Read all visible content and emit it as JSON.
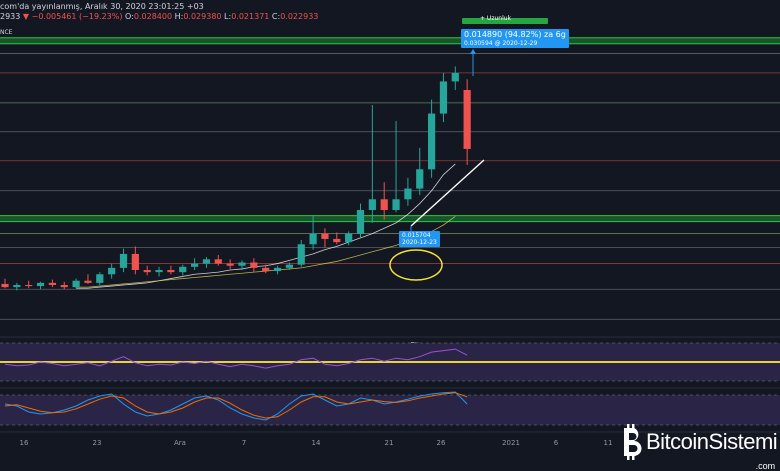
{
  "header": {
    "line1": "com'da yayınlanmış, Aralık 30, 2020 23:01:25 +03",
    "line2_prefix": "2933",
    "change": "−0.005461 (−19.23%)",
    "o_label": "O:",
    "o_val": "0.028400",
    "h_label": "H:",
    "h_val": "0.029380",
    "l_label": "L:",
    "l_val": "0.021371",
    "c_label": "C:",
    "c_val": "0.022933",
    "exchange": "NCE"
  },
  "callouts": {
    "top_green_label": "+ Uzunluk",
    "measure_main": "0.014890 (94.82%) zа 6g",
    "measure_sub": "0.030594 @ 2020-12-29",
    "low_main": "0.015704",
    "low_sub": "2020-12-23"
  },
  "x_axis": [
    "16",
    "23",
    "Ara",
    "7",
    "14",
    "21",
    "26",
    "2021",
    "6",
    "11"
  ],
  "logo": {
    "text": "BitcoinSistemi",
    "suffix": ".com"
  },
  "colors": {
    "up": "#26a69a",
    "down": "#ef5350",
    "bg": "#131722"
  },
  "chart_data": {
    "type": "candlestick",
    "candles": [
      {
        "o": 0.0103,
        "h": 0.0108,
        "l": 0.0099,
        "c": 0.01
      },
      {
        "o": 0.01,
        "h": 0.0104,
        "l": 0.0097,
        "c": 0.0102
      },
      {
        "o": 0.0102,
        "h": 0.0106,
        "l": 0.0099,
        "c": 0.0101
      },
      {
        "o": 0.0101,
        "h": 0.0105,
        "l": 0.0098,
        "c": 0.0104
      },
      {
        "o": 0.0104,
        "h": 0.0107,
        "l": 0.01,
        "c": 0.0102
      },
      {
        "o": 0.0102,
        "h": 0.0105,
        "l": 0.0098,
        "c": 0.01
      },
      {
        "o": 0.01,
        "h": 0.0108,
        "l": 0.0099,
        "c": 0.0106
      },
      {
        "o": 0.0106,
        "h": 0.0112,
        "l": 0.0103,
        "c": 0.0104
      },
      {
        "o": 0.0104,
        "h": 0.0114,
        "l": 0.0102,
        "c": 0.0112
      },
      {
        "o": 0.0112,
        "h": 0.0122,
        "l": 0.0108,
        "c": 0.0118
      },
      {
        "o": 0.0118,
        "h": 0.0136,
        "l": 0.0114,
        "c": 0.0131
      },
      {
        "o": 0.0131,
        "h": 0.0138,
        "l": 0.0112,
        "c": 0.0116
      },
      {
        "o": 0.0116,
        "h": 0.012,
        "l": 0.0111,
        "c": 0.0114
      },
      {
        "o": 0.0114,
        "h": 0.0119,
        "l": 0.011,
        "c": 0.0116
      },
      {
        "o": 0.0116,
        "h": 0.012,
        "l": 0.0112,
        "c": 0.0114
      },
      {
        "o": 0.0114,
        "h": 0.0121,
        "l": 0.0111,
        "c": 0.0119
      },
      {
        "o": 0.0119,
        "h": 0.0127,
        "l": 0.0116,
        "c": 0.0122
      },
      {
        "o": 0.0122,
        "h": 0.0128,
        "l": 0.0118,
        "c": 0.0126
      },
      {
        "o": 0.0126,
        "h": 0.013,
        "l": 0.012,
        "c": 0.0122
      },
      {
        "o": 0.0122,
        "h": 0.0126,
        "l": 0.0117,
        "c": 0.012
      },
      {
        "o": 0.012,
        "h": 0.0125,
        "l": 0.0116,
        "c": 0.0123
      },
      {
        "o": 0.0123,
        "h": 0.0127,
        "l": 0.0114,
        "c": 0.0118
      },
      {
        "o": 0.0118,
        "h": 0.0121,
        "l": 0.0113,
        "c": 0.0115
      },
      {
        "o": 0.0115,
        "h": 0.012,
        "l": 0.0112,
        "c": 0.0118
      },
      {
        "o": 0.0118,
        "h": 0.0123,
        "l": 0.0116,
        "c": 0.0121
      },
      {
        "o": 0.0121,
        "h": 0.0144,
        "l": 0.0119,
        "c": 0.014
      },
      {
        "o": 0.014,
        "h": 0.0167,
        "l": 0.0135,
        "c": 0.015
      },
      {
        "o": 0.015,
        "h": 0.0155,
        "l": 0.0137,
        "c": 0.0145
      },
      {
        "o": 0.0145,
        "h": 0.0151,
        "l": 0.014,
        "c": 0.0142
      },
      {
        "o": 0.0142,
        "h": 0.0152,
        "l": 0.0139,
        "c": 0.015
      },
      {
        "o": 0.015,
        "h": 0.0178,
        "l": 0.0146,
        "c": 0.0172
      },
      {
        "o": 0.0172,
        "h": 0.027,
        "l": 0.016,
        "c": 0.0182
      },
      {
        "o": 0.0182,
        "h": 0.0198,
        "l": 0.0163,
        "c": 0.0172
      },
      {
        "o": 0.0172,
        "h": 0.0255,
        "l": 0.017,
        "c": 0.0182
      },
      {
        "o": 0.0182,
        "h": 0.0202,
        "l": 0.0176,
        "c": 0.0192
      },
      {
        "o": 0.0192,
        "h": 0.023,
        "l": 0.0186,
        "c": 0.021
      },
      {
        "o": 0.021,
        "h": 0.0275,
        "l": 0.0202,
        "c": 0.0262
      },
      {
        "o": 0.0262,
        "h": 0.03,
        "l": 0.0254,
        "c": 0.0292
      },
      {
        "o": 0.0292,
        "h": 0.0306,
        "l": 0.0284,
        "c": 0.03
      },
      {
        "o": 0.0284,
        "h": 0.0294,
        "l": 0.0214,
        "c": 0.0229
      }
    ],
    "moving_averages": [
      {
        "values": [
          0.0099,
          0.0099,
          0.01,
          0.0101,
          0.0102,
          0.0103,
          0.0104,
          0.0106,
          0.0108,
          0.011,
          0.0112,
          0.0113,
          0.0114,
          0.0116,
          0.0117,
          0.0119,
          0.012,
          0.0122,
          0.0125,
          0.0128,
          0.0131,
          0.0135,
          0.0138,
          0.0142,
          0.0146,
          0.015,
          0.0155,
          0.016,
          0.0168,
          0.0178,
          0.019,
          0.0205,
          0.0215
        ],
        "color": "#ffffff",
        "start": 6
      },
      {
        "values": [
          0.01,
          0.01,
          0.0101,
          0.0102,
          0.0103,
          0.0104,
          0.0105,
          0.0106,
          0.0107,
          0.0108,
          0.0109,
          0.011,
          0.0111,
          0.0112,
          0.0113,
          0.0114,
          0.0115,
          0.0116,
          0.0117,
          0.0118,
          0.012,
          0.0122,
          0.0124,
          0.0127,
          0.013,
          0.0133,
          0.0136,
          0.0139,
          0.0143,
          0.0147,
          0.0152,
          0.0158,
          0.0166
        ],
        "color": "#e0d25a",
        "start": 6
      }
    ],
    "levels": [
      {
        "v": 0.033,
        "color": "#26c940",
        "style": "band"
      },
      {
        "v": 0.0318,
        "color": "#787b86"
      },
      {
        "v": 0.03,
        "color": "#c2493f"
      },
      {
        "v": 0.0272,
        "color": "#7fa36b"
      },
      {
        "v": 0.0245,
        "color": "#787b86"
      },
      {
        "v": 0.0218,
        "color": "#c2493f"
      },
      {
        "v": 0.019,
        "color": "#787b86"
      },
      {
        "v": 0.0164,
        "color": "#26c940",
        "style": "band"
      },
      {
        "v": 0.015,
        "color": "#7fa36b"
      },
      {
        "v": 0.0137,
        "color": "#787b86"
      },
      {
        "v": 0.0122,
        "color": "#c2493f"
      },
      {
        "v": 0.0098,
        "color": "#787b86"
      },
      {
        "v": 0.007,
        "color": "#787b86"
      }
    ],
    "rsi": [
      52,
      50,
      51,
      55,
      53,
      50,
      52,
      54,
      50,
      56,
      62,
      54,
      50,
      52,
      51,
      55,
      53,
      56,
      52,
      49,
      52,
      50,
      47,
      50,
      52,
      58,
      60,
      52,
      50,
      53,
      58,
      60,
      56,
      60,
      58,
      62,
      68,
      70,
      72,
      64
    ],
    "stoch_k": [
      60,
      55,
      40,
      35,
      38,
      45,
      55,
      70,
      80,
      85,
      60,
      40,
      30,
      35,
      45,
      60,
      75,
      80,
      70,
      50,
      35,
      25,
      20,
      35,
      60,
      80,
      85,
      70,
      55,
      60,
      75,
      70,
      60,
      65,
      72,
      80,
      85,
      88,
      90,
      60
    ],
    "stoch_d": [
      55,
      58,
      50,
      42,
      38,
      40,
      48,
      60,
      72,
      80,
      75,
      55,
      40,
      35,
      40,
      50,
      65,
      75,
      75,
      62,
      45,
      32,
      25,
      28,
      45,
      65,
      78,
      78,
      65,
      60,
      65,
      70,
      66,
      64,
      68,
      75,
      80,
      85,
      88,
      78
    ]
  }
}
